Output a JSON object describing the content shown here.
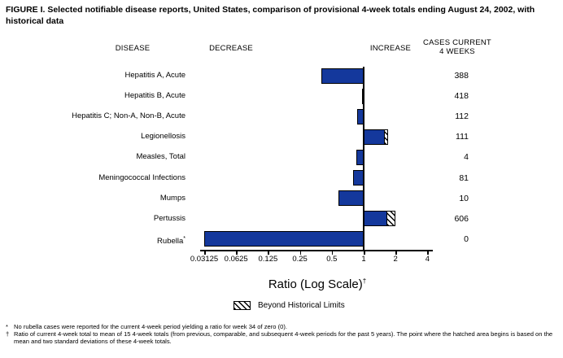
{
  "title": "FIGURE I. Selected notifiable disease reports, United States, comparison of provisional 4-week totals ending August 24, 2002, with historical data",
  "columns": {
    "disease": "DISEASE",
    "decrease": "DECREASE",
    "increase": "INCREASE",
    "cases_line1": "CASES CURRENT",
    "cases_line2": "4 WEEKS"
  },
  "axis_label": "Ratio (Log Scale)",
  "axis_label_dagger": "†",
  "legend": {
    "label": "Beyond Historical Limits"
  },
  "footnotes": [
    {
      "marker": "*",
      "text": "No rubella cases were reported for the current 4-week period yielding a ratio for week 34 of zero (0)."
    },
    {
      "marker": "†",
      "text": "Ratio of current 4-week total to mean of 15 4-week totals (from previous, comparable, and subsequent 4-week periods for the past 5 years). The point where the hatched area begins is based on the mean and two standard deviations of these 4-week totals."
    }
  ],
  "colors": {
    "bar": "#14389c",
    "hatch_fg": "#000000",
    "background": "#ffffff"
  },
  "chart_data": {
    "type": "bar",
    "orientation": "horizontal",
    "scale": "log2",
    "baseline": 1,
    "xlabel": "Ratio (Log Scale)",
    "xticks": [
      0.03125,
      0.0625,
      0.125,
      0.25,
      0.5,
      1,
      2,
      4
    ],
    "xtick_labels": [
      "0.03125",
      "0.0625",
      "0.125",
      "0.25",
      "0.5",
      "1",
      "2",
      "4"
    ],
    "legend_entries": [
      "Beyond Historical Limits"
    ],
    "series": [
      {
        "disease": "Hepatitis A, Acute",
        "cases": 388,
        "ratio": 0.4
      },
      {
        "disease": "Hepatitis B, Acute",
        "cases": 418,
        "ratio": 0.97
      },
      {
        "disease": "Hepatitis C; Non-A, Non-B, Acute",
        "cases": 112,
        "ratio": 0.87
      },
      {
        "disease": "Legionellosis",
        "cases": 111,
        "ratio": 1.69,
        "beyond_limits_from": 1.52
      },
      {
        "disease": "Measles, Total",
        "cases": 4,
        "ratio": 0.86
      },
      {
        "disease": "Meningococcal Infections",
        "cases": 81,
        "ratio": 0.79
      },
      {
        "disease": "Mumps",
        "cases": 10,
        "ratio": 0.58
      },
      {
        "disease": "Pertussis",
        "cases": 606,
        "ratio": 1.99,
        "beyond_limits_from": 1.62
      },
      {
        "disease": "Rubella",
        "cases": 0,
        "ratio": 0.03125,
        "label_suffix": "*"
      }
    ]
  }
}
